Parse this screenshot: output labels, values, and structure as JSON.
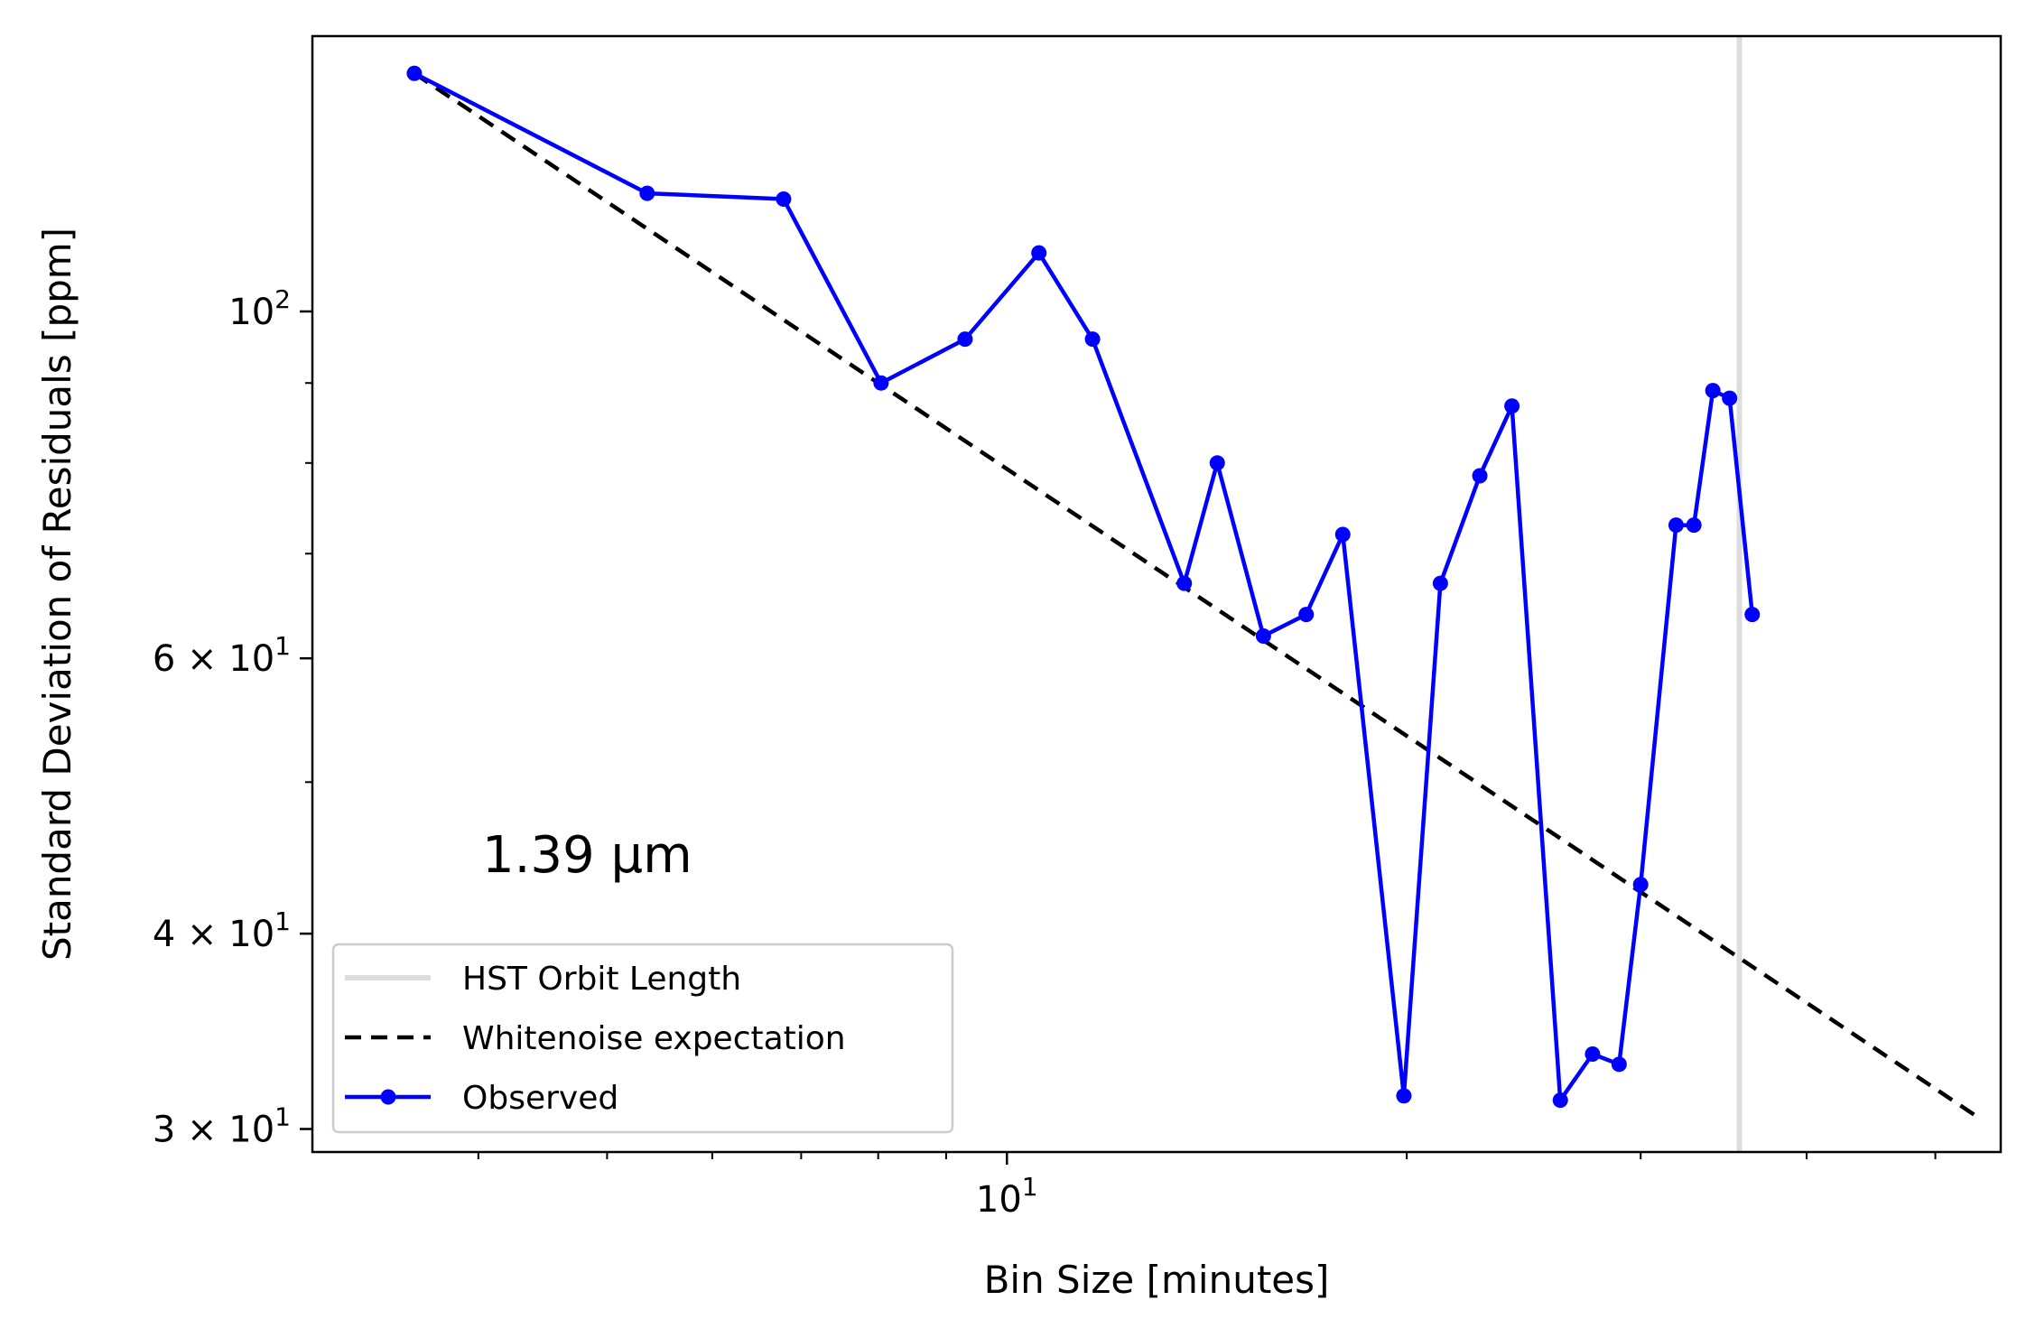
{
  "chart_data": {
    "type": "line",
    "xlabel": "Bin Size [minutes]",
    "ylabel": "Standard Deviation of Residuals [ppm]",
    "xscale": "log",
    "yscale": "log",
    "xlim": [
      3.0,
      56
    ],
    "ylim": [
      29,
      150
    ],
    "annotation": "1.39 μm",
    "legend_position": "lower-left",
    "x_ticks": [
      {
        "value": 10,
        "base": "10",
        "exp": "1"
      }
    ],
    "y_ticks": [
      {
        "value": 100,
        "base": "10",
        "exp": "2",
        "coef": ""
      },
      {
        "value": 60,
        "base": "10",
        "exp": "1",
        "coef": "6"
      },
      {
        "value": 40,
        "base": "10",
        "exp": "1",
        "coef": "4"
      },
      {
        "value": 30,
        "base": "10",
        "exp": "1",
        "coef": "3"
      }
    ],
    "x_minor_ticks": [
      4,
      5,
      6,
      7,
      8,
      9,
      20,
      30,
      40,
      50
    ],
    "y_minor_ticks": [
      50,
      70,
      80,
      90
    ],
    "series": [
      {
        "name": "HST Orbit Length",
        "kind": "vline",
        "x": 35.6,
        "color": "#dddddd"
      },
      {
        "name": "Whitenoise expectation",
        "kind": "dashed-line",
        "color": "#000000",
        "x": [
          3.58,
          53.6
        ],
        "y": [
          142,
          30.6
        ]
      },
      {
        "name": "Observed",
        "kind": "line-marker",
        "color": "#0000ff",
        "x": [
          3.58,
          5.36,
          6.79,
          8.04,
          9.3,
          10.57,
          11.6,
          13.6,
          14.4,
          15.6,
          16.8,
          17.9,
          19.9,
          21.2,
          22.7,
          24.0,
          26.1,
          27.6,
          28.9,
          30.0,
          31.9,
          32.9,
          34.0,
          35.0,
          36.4
        ],
        "y": [
          142,
          119,
          118,
          90,
          96,
          109,
          96,
          67,
          80,
          62,
          64,
          72,
          31.5,
          67,
          78.5,
          87,
          31.3,
          33.5,
          33,
          43,
          73,
          73,
          89,
          88,
          64
        ]
      }
    ]
  }
}
